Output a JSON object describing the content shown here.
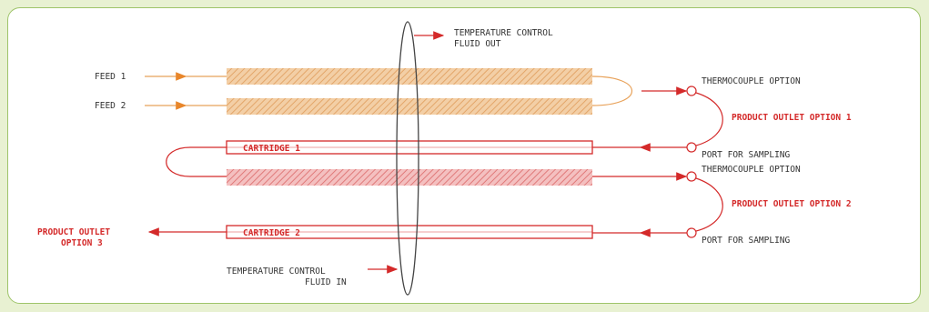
{
  "colors": {
    "background": "#e8f1d2",
    "panel": "#ffffff",
    "panel_border": "#9ec46a",
    "feed_tube": "#f0c89a",
    "feed_line": "#e8a25a",
    "red": "#d42a2a",
    "red_hatch": "#f0a8a8",
    "text": "#333333"
  },
  "labels": {
    "temp_out_1": "TEMPERATURE CONTROL",
    "temp_out_2": "FLUID OUT",
    "feed_1": "FEED 1",
    "feed_2": "FEED 2",
    "cartridge_1": "CARTRIDGE 1",
    "cartridge_2": "CARTRIDGE 2",
    "thermocouple_1": "THERMOCOUPLE OPTION",
    "product_outlet_1": "PRODUCT OUTLET OPTION 1",
    "port_sampling_1": "PORT FOR SAMPLING",
    "thermocouple_2": "THERMOCOUPLE OPTION",
    "product_outlet_2": "PRODUCT OUTLET OPTION 2",
    "port_sampling_2": "PORT FOR SAMPLING",
    "product_outlet_3_1": "PRODUCT OUTLET",
    "product_outlet_3_2": "OPTION 3",
    "temp_in_1": "TEMPERATURE CONTROL",
    "temp_in_2": "FLUID IN"
  }
}
